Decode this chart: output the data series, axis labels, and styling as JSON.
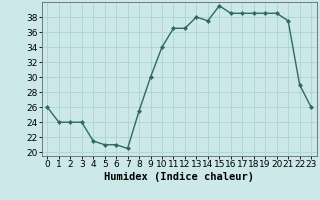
{
  "x": [
    0,
    1,
    2,
    3,
    4,
    5,
    6,
    7,
    8,
    9,
    10,
    11,
    12,
    13,
    14,
    15,
    16,
    17,
    18,
    19,
    20,
    21,
    22,
    23
  ],
  "y": [
    26,
    24,
    24,
    24,
    21.5,
    21,
    21,
    20.5,
    25.5,
    30,
    34,
    36.5,
    36.5,
    38,
    37.5,
    39.5,
    38.5,
    38.5,
    38.5,
    38.5,
    38.5,
    37.5,
    29,
    26
  ],
  "line_color": "#2e6b5e",
  "marker": "D",
  "marker_size": 2.0,
  "bg_color": "#cce8e8",
  "grid_color": "#aad4d4",
  "xlabel": "Humidex (Indice chaleur)",
  "xlim": [
    -0.5,
    23.5
  ],
  "ylim": [
    19.5,
    40
  ],
  "yticks": [
    20,
    22,
    24,
    26,
    28,
    30,
    32,
    34,
    36,
    38
  ],
  "xticks": [
    0,
    1,
    2,
    3,
    4,
    5,
    6,
    7,
    8,
    9,
    10,
    11,
    12,
    13,
    14,
    15,
    16,
    17,
    18,
    19,
    20,
    21,
    22,
    23
  ],
  "tick_fontsize": 6.5,
  "xlabel_fontsize": 7.5,
  "line_width": 1.0
}
